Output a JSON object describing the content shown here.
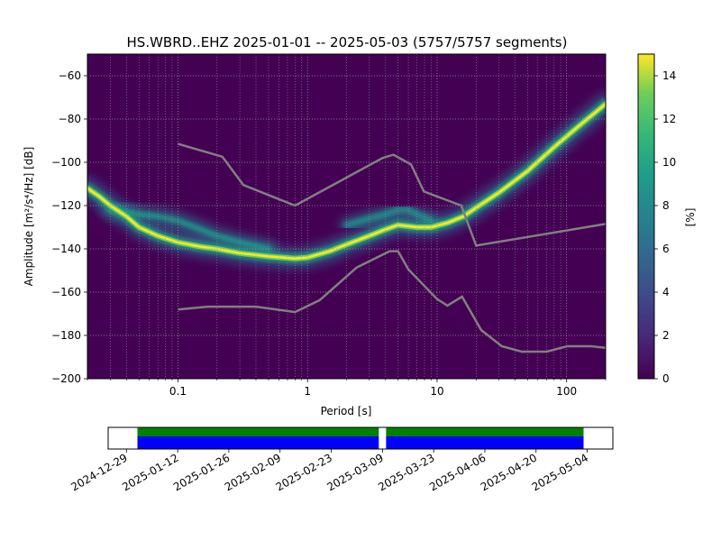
{
  "chart_data": [
    {
      "type": "heatmap",
      "title": "HS.WBRD..EHZ   2025-01-01 -- 2025-05-03  (5757/5757 segments)",
      "xlabel": "Period [s]",
      "ylabel": "Amplitude [m²/s⁴/Hz] [dB]",
      "x_scale": "log",
      "xlim": [
        0.02,
        200
      ],
      "ylim": [
        -200,
        -50
      ],
      "x_ticks": [
        0.1,
        1,
        10,
        100
      ],
      "x_tick_labels": [
        "0.1",
        "1",
        "10",
        "100"
      ],
      "y_ticks": [
        -200,
        -180,
        -160,
        -140,
        -120,
        -100,
        -80,
        -60
      ],
      "y_tick_labels": [
        "−200",
        "−180",
        "−160",
        "−140",
        "−120",
        "−100",
        "−80",
        "−60"
      ],
      "grid": true,
      "colormap": "viridis",
      "colorbar": {
        "label": "[%]",
        "range": [
          0,
          15
        ],
        "ticks": [
          0,
          2,
          4,
          6,
          8,
          10,
          12,
          14
        ],
        "tick_labels": [
          "0",
          "2",
          "4",
          "6",
          "8",
          "10",
          "12",
          "14"
        ]
      },
      "psd_mode": {
        "x": [
          0.02,
          0.025,
          0.03,
          0.04,
          0.05,
          0.07,
          0.1,
          0.15,
          0.2,
          0.3,
          0.5,
          0.8,
          1,
          1.5,
          2,
          3,
          4,
          5,
          7,
          9,
          12,
          16,
          20,
          30,
          50,
          80,
          120,
          200
        ],
        "y": [
          -112,
          -116,
          -120,
          -125,
          -130,
          -134,
          -137,
          -139,
          -140,
          -142,
          -143.5,
          -144.5,
          -144,
          -141,
          -138,
          -134,
          -131,
          -129,
          -130,
          -130,
          -128,
          -125,
          -121,
          -114,
          -104,
          -93,
          -84,
          -73
        ]
      },
      "secondary_band": {
        "x": [
          0.03,
          0.05,
          0.07,
          0.1,
          0.15,
          0.2,
          0.3,
          0.5
        ],
        "y": [
          -122,
          -124,
          -125,
          -127,
          -131,
          -134,
          -137,
          -140
        ]
      },
      "upper_band": {
        "x": [
          2,
          3,
          4,
          5,
          6,
          7,
          9
        ],
        "y": [
          -129,
          -126,
          -124,
          -122,
          -122,
          -124,
          -127
        ]
      },
      "noise_model_high": {
        "x": [
          0.1,
          0.22,
          0.32,
          0.8,
          3.8,
          4.6,
          6.3,
          7.9,
          15.4,
          20,
          200
        ],
        "y": [
          -91.5,
          -97.4,
          -110.5,
          -120,
          -98,
          -96.5,
          -101,
          -113.5,
          -120,
          -138.5,
          -128.5
        ]
      },
      "noise_model_low": {
        "x": [
          0.1,
          0.17,
          0.4,
          0.8,
          1.24,
          2.4,
          4.3,
          5,
          6,
          10,
          12,
          15.6,
          21.9,
          31.6,
          45,
          70,
          101,
          154,
          200
        ],
        "y": [
          -168,
          -166.7,
          -166.7,
          -169.2,
          -163.7,
          -148.6,
          -141.1,
          -141.1,
          -149.5,
          -163.2,
          -166.2,
          -162.1,
          -177.5,
          -185,
          -187.5,
          -187.5,
          -185,
          -185,
          -185.7
        ]
      }
    },
    {
      "type": "bar",
      "title": "",
      "xlabel": "",
      "ylabel": "",
      "x_axis": "dates",
      "xlim": [
        "2024-12-24",
        "2025-05-11"
      ],
      "x_tick_labels": [
        "2024-12-29",
        "2025-01-12",
        "2025-01-26",
        "2025-02-09",
        "2025-02-23",
        "2025-03-09",
        "2025-03-23",
        "2025-04-06",
        "2025-04-20",
        "2025-05-04"
      ],
      "x_ticks": [
        "2024-12-29",
        "2025-01-12",
        "2025-01-26",
        "2025-02-09",
        "2025-02-23",
        "2025-03-09",
        "2025-03-23",
        "2025-04-06",
        "2025-04-20",
        "2025-05-04"
      ],
      "data_availability": {
        "segments": [
          [
            "2025-01-01",
            "2025-03-08"
          ],
          [
            "2025-03-10",
            "2025-05-03"
          ]
        ],
        "color": "#0000ff"
      },
      "psd_coverage": {
        "segments": [
          [
            "2025-01-01",
            "2025-03-08"
          ],
          [
            "2025-03-10",
            "2025-05-03"
          ]
        ],
        "color": "#008000"
      }
    }
  ],
  "colors": {
    "noise_model": "#808080",
    "grid": "#9a9a9a"
  }
}
